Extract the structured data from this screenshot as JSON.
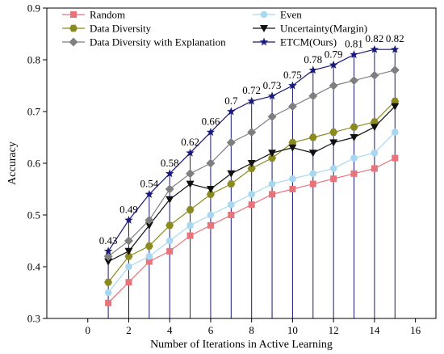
{
  "chart_data": {
    "type": "line",
    "xlabel": "Number of Iterations in Active Learning",
    "ylabel": "Accuracy",
    "xlim": [
      -2,
      17
    ],
    "ylim": [
      0.3,
      0.9
    ],
    "xticks": [
      0,
      2,
      4,
      6,
      8,
      10,
      12,
      14,
      16
    ],
    "yticks": [
      0.3,
      0.4,
      0.5,
      0.6,
      0.7,
      0.8,
      0.9
    ],
    "x": [
      1,
      2,
      3,
      4,
      5,
      6,
      7,
      8,
      9,
      10,
      11,
      12,
      13,
      14,
      15
    ],
    "legend_position": "top",
    "grid": false,
    "series": [
      {
        "name": "Random",
        "marker": "square",
        "color": "#e8737a",
        "values": [
          0.33,
          0.37,
          0.41,
          0.43,
          0.46,
          0.48,
          0.5,
          0.52,
          0.54,
          0.55,
          0.56,
          0.57,
          0.58,
          0.59,
          0.61
        ]
      },
      {
        "name": "Even",
        "marker": "circle",
        "color": "#a8d8f0",
        "values": [
          0.35,
          0.4,
          0.42,
          0.45,
          0.48,
          0.5,
          0.52,
          0.54,
          0.56,
          0.57,
          0.58,
          0.59,
          0.61,
          0.62,
          0.66
        ]
      },
      {
        "name": "Data Diversity",
        "marker": "hexagon",
        "color": "#8a8a1e",
        "values": [
          0.37,
          0.42,
          0.44,
          0.48,
          0.51,
          0.54,
          0.56,
          0.59,
          0.61,
          0.64,
          0.65,
          0.66,
          0.67,
          0.68,
          0.72
        ]
      },
      {
        "name": "Uncertainty(Margin)",
        "marker": "triangle-down",
        "color": "#111111",
        "values": [
          0.41,
          0.43,
          0.48,
          0.53,
          0.56,
          0.55,
          0.58,
          0.6,
          0.62,
          0.63,
          0.62,
          0.64,
          0.65,
          0.67,
          0.71
        ]
      },
      {
        "name": "Data Diversity with Explanation",
        "marker": "diamond",
        "color": "#7f7f7f",
        "values": [
          0.42,
          0.45,
          0.49,
          0.55,
          0.58,
          0.6,
          0.64,
          0.66,
          0.69,
          0.71,
          0.73,
          0.75,
          0.76,
          0.77,
          0.78
        ]
      },
      {
        "name": "ETCM(Ours)",
        "marker": "star",
        "color": "#1a1a7a",
        "values": [
          0.43,
          0.49,
          0.54,
          0.58,
          0.62,
          0.66,
          0.7,
          0.72,
          0.73,
          0.75,
          0.78,
          0.79,
          0.81,
          0.82,
          0.82
        ]
      }
    ],
    "annotations": [
      "0.43",
      "0.49",
      "0.54",
      "0.58",
      "0.62",
      "0.66",
      "0.7",
      "0.72",
      "0.73",
      "0.75",
      "0.78",
      "0.79",
      "0.81",
      "0.82",
      "0.82"
    ]
  }
}
